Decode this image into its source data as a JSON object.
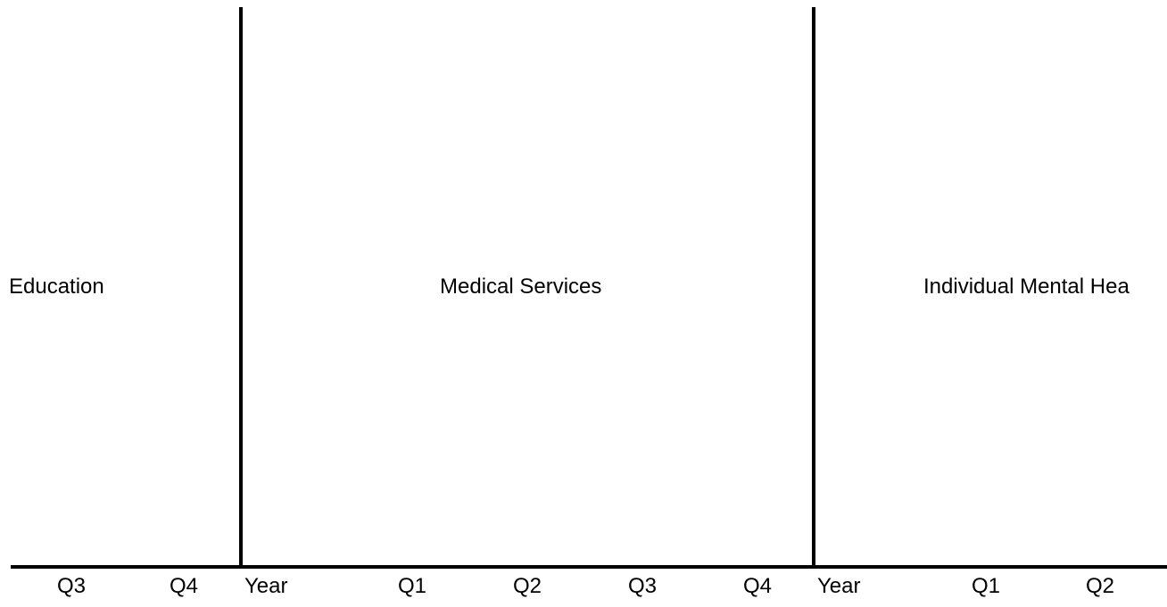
{
  "sections": {
    "education": "Education",
    "medical_services": "Medical Services",
    "individual_mental_health": "Individual Mental Hea"
  },
  "axis": {
    "ticks": [
      "Q3",
      "Q4",
      "Year",
      "Q1",
      "Q2",
      "Q3",
      "Q4",
      "Year",
      "Q1",
      "Q2"
    ]
  }
}
